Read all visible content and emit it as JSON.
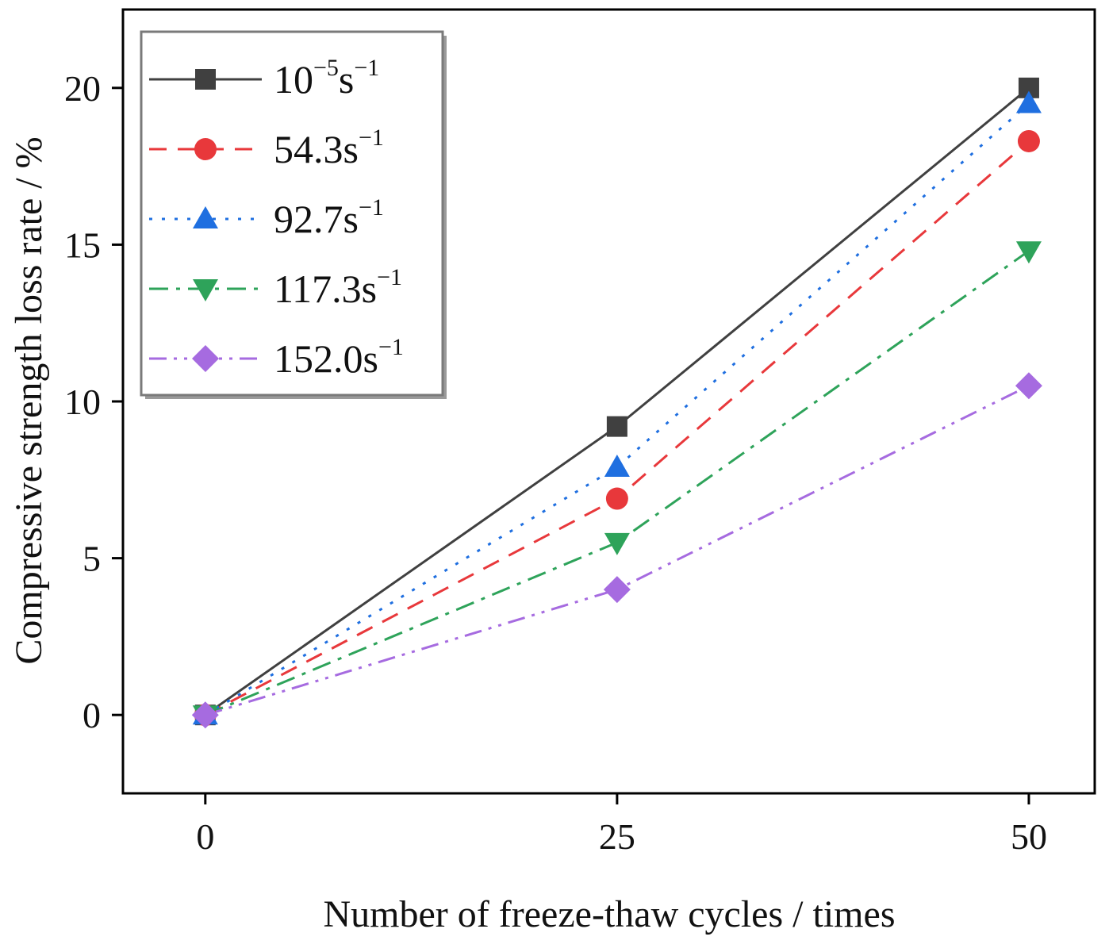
{
  "chart_data": {
    "type": "line",
    "xlabel": "Number of freeze-thaw cycles / times",
    "ylabel": "Compressive strength loss rate / %",
    "x": [
      0,
      25,
      50
    ],
    "x_ticks": [
      "0",
      "25",
      "50"
    ],
    "y_ticks": [
      "0",
      "5",
      "10",
      "15",
      "20"
    ],
    "xlim": [
      -5,
      54
    ],
    "ylim": [
      -2.5,
      22.5
    ],
    "grid": false,
    "legend_position": "top-left",
    "series": [
      {
        "name_base": "10",
        "name_exp": "−5",
        "name_unit": "s",
        "name_unit_exp": "−1",
        "values": [
          0,
          9.2,
          20.0
        ],
        "color": "#404040",
        "dash": "solid",
        "marker": "square"
      },
      {
        "name_base": "54.3",
        "name_exp": "",
        "name_unit": "s",
        "name_unit_exp": "−1",
        "values": [
          0,
          6.9,
          18.3
        ],
        "color": "#e8383b",
        "dash": "dash",
        "marker": "circle"
      },
      {
        "name_base": "92.7",
        "name_exp": "",
        "name_unit": "s",
        "name_unit_exp": "−1",
        "values": [
          0,
          7.9,
          19.5
        ],
        "color": "#1f6fe0",
        "dash": "dot",
        "marker": "triangle-up"
      },
      {
        "name_base": "117.3",
        "name_exp": "",
        "name_unit": "s",
        "name_unit_exp": "−1",
        "values": [
          0,
          5.5,
          14.8
        ],
        "color": "#2ea35a",
        "dash": "dashdot",
        "marker": "triangle-down"
      },
      {
        "name_base": "152.0",
        "name_exp": "",
        "name_unit": "s",
        "name_unit_exp": "−1",
        "values": [
          0,
          4.0,
          10.5
        ],
        "color": "#a66be0",
        "dash": "dashdotdot",
        "marker": "diamond"
      }
    ]
  }
}
